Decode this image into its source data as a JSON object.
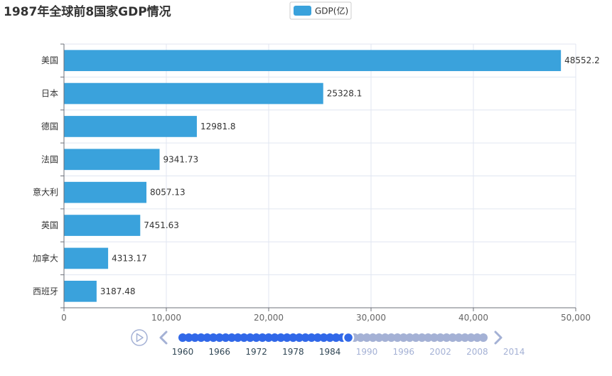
{
  "chart_data": {
    "type": "bar",
    "orientation": "horizontal",
    "title": "1987年全球前8国家GDP情况",
    "categories": [
      "美国",
      "日本",
      "德国",
      "法国",
      "意大利",
      "英国",
      "加拿大",
      "西班牙"
    ],
    "series": [
      {
        "name": "GDP(亿)",
        "values": [
          48552.2,
          25328.1,
          12981.8,
          9341.73,
          8057.13,
          7451.63,
          4313.17,
          3187.48
        ],
        "value_labels": [
          "48552.2",
          "25328.1",
          "12981.8",
          "9341.73",
          "8057.13",
          "7451.63",
          "4313.17",
          "3187.48"
        ]
      }
    ],
    "xlim": [
      0,
      50000
    ],
    "x_ticks": [
      0,
      10000,
      20000,
      30000,
      40000,
      50000
    ],
    "x_tick_labels": [
      "0",
      "10,000",
      "20,000",
      "30,000",
      "40,000",
      "50,000"
    ],
    "grid": true,
    "legend_position": "top-center",
    "colors": {
      "bar": "#3aa2dc",
      "axis": "#6e7079",
      "grid": "#e0e6f1"
    }
  },
  "timeline": {
    "labels": [
      "1960",
      "1966",
      "1972",
      "1978",
      "1984",
      "1990",
      "1996",
      "2002",
      "2008",
      "2014"
    ],
    "current_index": 27,
    "point_count": 50,
    "colors": {
      "active": "#3168e8",
      "inactive": "#a4b1d5",
      "control": "#a4b1d5"
    },
    "icons": {
      "play": "play-icon",
      "prev": "chevron-left-icon",
      "next": "chevron-right-icon"
    }
  }
}
